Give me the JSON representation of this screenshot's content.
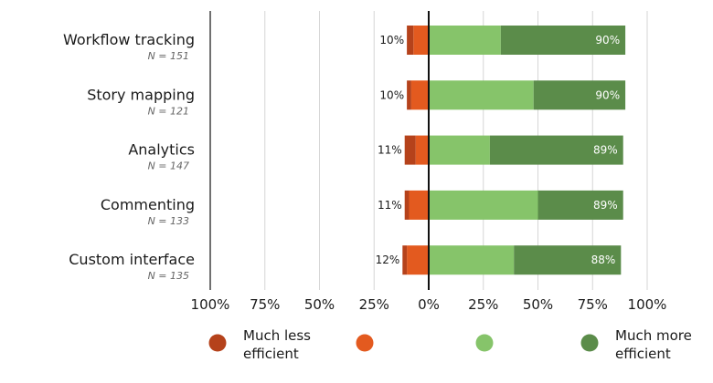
{
  "chart_data": {
    "type": "bar",
    "orientation": "horizontal",
    "stacked": "diverging",
    "categories": [
      "Workflow tracking",
      "Story mapping",
      "Analytics",
      "Commenting",
      "Custom interface"
    ],
    "n_labels": [
      "N = 151",
      "N = 121",
      "N = 147",
      "N = 133",
      "N = 135"
    ],
    "series": [
      {
        "name": "Much less efficient",
        "color": "#b5421b",
        "values": [
          -3,
          -2,
          -5,
          -2,
          -2
        ]
      },
      {
        "name": "",
        "color": "#e35a1f",
        "values": [
          -7,
          -8,
          -6,
          -9,
          -10
        ]
      },
      {
        "name": "",
        "color": "#86c46a",
        "values": [
          33,
          48,
          28,
          50,
          39
        ]
      },
      {
        "name": "Much more efficient",
        "color": "#5b8c4a",
        "values": [
          57,
          42,
          61,
          39,
          49
        ]
      }
    ],
    "left_totals": [
      "10%",
      "10%",
      "11%",
      "11%",
      "12%"
    ],
    "right_totals": [
      "90%",
      "90%",
      "89%",
      "89%",
      "88%"
    ],
    "xlim": [
      -100,
      100
    ],
    "x_ticks": [
      -100,
      -75,
      -50,
      -25,
      0,
      25,
      50,
      75,
      100
    ],
    "x_tick_labels": [
      "100%",
      "75%",
      "50%",
      "25%",
      "0%",
      "25%",
      "50%",
      "75%",
      "100%"
    ],
    "grid": true,
    "legend_position": "bottom",
    "legend": [
      {
        "label_lines": [
          "Much less",
          "efficient"
        ],
        "color": "#b5421b"
      },
      {
        "label_lines": [],
        "color": "#e35a1f"
      },
      {
        "label_lines": [],
        "color": "#86c46a"
      },
      {
        "label_lines": [
          "Much more",
          "efficient"
        ],
        "color": "#5b8c4a"
      }
    ]
  }
}
